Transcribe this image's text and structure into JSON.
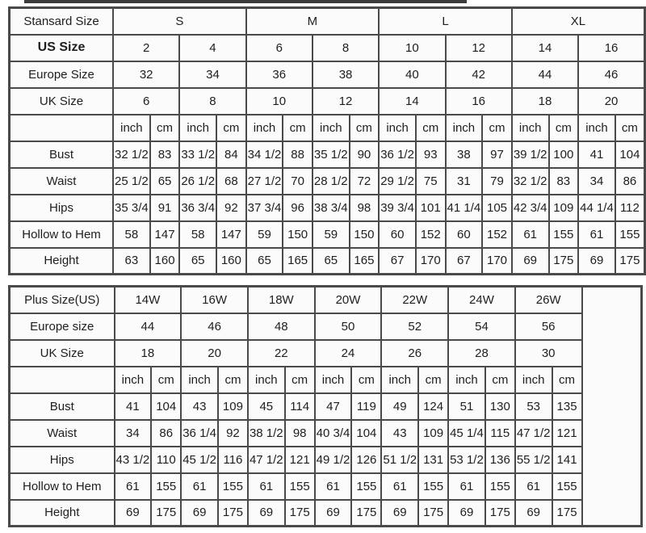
{
  "colors": {
    "grid_line": "#4a4a4a",
    "cell_background": "#fbfbfb",
    "text": "#1e1e1e",
    "page_background": "#ffffff",
    "cropped_strip": "#3c3c3c"
  },
  "standard_table": {
    "corner_label": "Stansard Size",
    "group_row": [
      "S",
      "M",
      "L",
      "XL"
    ],
    "size_rows": [
      {
        "label": "US Size",
        "bold": true,
        "values": [
          "2",
          "4",
          "6",
          "8",
          "10",
          "12",
          "14",
          "16"
        ]
      },
      {
        "label": "Europe Size",
        "bold": false,
        "values": [
          "32",
          "34",
          "36",
          "38",
          "40",
          "42",
          "44",
          "46"
        ]
      },
      {
        "label": "UK Size",
        "bold": false,
        "values": [
          "6",
          "8",
          "10",
          "12",
          "14",
          "16",
          "18",
          "20"
        ]
      }
    ],
    "unit_labels": [
      "inch",
      "cm"
    ],
    "measure_rows": [
      {
        "label": "Bust",
        "values": [
          "32 1/2",
          "83",
          "33 1/2",
          "84",
          "34 1/2",
          "88",
          "35 1/2",
          "90",
          "36 1/2",
          "93",
          "38",
          "97",
          "39 1/2",
          "100",
          "41",
          "104"
        ]
      },
      {
        "label": "Waist",
        "values": [
          "25 1/2",
          "65",
          "26 1/2",
          "68",
          "27 1/2",
          "70",
          "28 1/2",
          "72",
          "29 1/2",
          "75",
          "31",
          "79",
          "32 1/2",
          "83",
          "34",
          "86"
        ]
      },
      {
        "label": "Hips",
        "values": [
          "35 3/4",
          "91",
          "36 3/4",
          "92",
          "37 3/4",
          "96",
          "38 3/4",
          "98",
          "39 3/4",
          "101",
          "41 1/4",
          "105",
          "42 3/4",
          "109",
          "44 1/4",
          "112"
        ]
      },
      {
        "label": "Hollow to Hem",
        "values": [
          "58",
          "147",
          "58",
          "147",
          "59",
          "150",
          "59",
          "150",
          "60",
          "152",
          "60",
          "152",
          "61",
          "155",
          "61",
          "155"
        ]
      },
      {
        "label": "Height",
        "values": [
          "63",
          "160",
          "65",
          "160",
          "65",
          "165",
          "65",
          "165",
          "67",
          "170",
          "67",
          "170",
          "69",
          "175",
          "69",
          "175"
        ]
      }
    ],
    "trailing_blank_col": false
  },
  "plus_table": {
    "corner_label": "Plus Size(US)",
    "group_row": [
      "14W",
      "16W",
      "18W",
      "20W",
      "22W",
      "24W",
      "26W"
    ],
    "size_rows": [
      {
        "label": "Europe size",
        "bold": false,
        "values": [
          "44",
          "46",
          "48",
          "50",
          "52",
          "54",
          "56"
        ]
      },
      {
        "label": "UK Size",
        "bold": false,
        "values": [
          "18",
          "20",
          "22",
          "24",
          "26",
          "28",
          "30"
        ]
      }
    ],
    "unit_labels": [
      "inch",
      "cm"
    ],
    "measure_rows": [
      {
        "label": "Bust",
        "values": [
          "41",
          "104",
          "43",
          "109",
          "45",
          "114",
          "47",
          "119",
          "49",
          "124",
          "51",
          "130",
          "53",
          "135"
        ]
      },
      {
        "label": "Waist",
        "values": [
          "34",
          "86",
          "36 1/4",
          "92",
          "38 1/2",
          "98",
          "40 3/4",
          "104",
          "43",
          "109",
          "45 1/4",
          "115",
          "47 1/2",
          "121"
        ]
      },
      {
        "label": "Hips",
        "values": [
          "43 1/2",
          "110",
          "45 1/2",
          "116",
          "47 1/2",
          "121",
          "49 1/2",
          "126",
          "51 1/2",
          "131",
          "53 1/2",
          "136",
          "55 1/2",
          "141"
        ]
      },
      {
        "label": "Hollow to Hem",
        "values": [
          "61",
          "155",
          "61",
          "155",
          "61",
          "155",
          "61",
          "155",
          "61",
          "155",
          "61",
          "155",
          "61",
          "155"
        ]
      },
      {
        "label": "Height",
        "values": [
          "69",
          "175",
          "69",
          "175",
          "69",
          "175",
          "69",
          "175",
          "69",
          "175",
          "69",
          "175",
          "69",
          "175"
        ]
      }
    ],
    "trailing_blank_col": true
  }
}
